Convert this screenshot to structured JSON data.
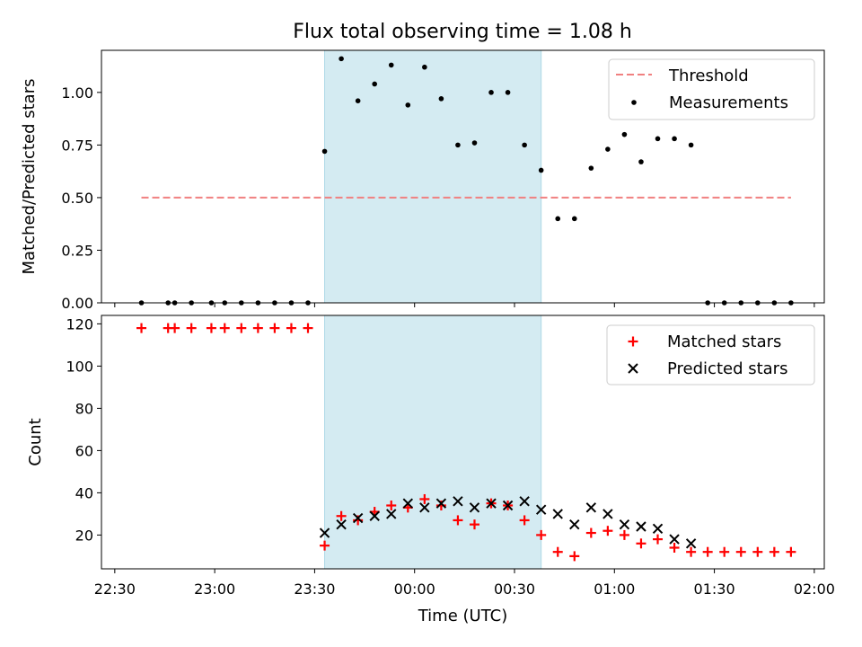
{
  "title": "Flux total observing time = 1.08 h",
  "x_axis": {
    "label": "Time (UTC)",
    "min_minutes_since_2230": -4,
    "max_minutes_since_2230": 213,
    "ticks": [
      "22:30",
      "23:00",
      "23:30",
      "00:00",
      "00:30",
      "01:00",
      "01:30",
      "02:00"
    ]
  },
  "highlight_band": {
    "start": "23:33",
    "end": "00:38",
    "color": "#add8e6"
  },
  "chart_data": [
    {
      "type": "scatter",
      "ylabel": "Matched/Predicted stars",
      "ylim": [
        0,
        1.2
      ],
      "yticks": [
        "0.00",
        "0.25",
        "0.50",
        "0.75",
        "1.00"
      ],
      "legend": {
        "placement": "top-right",
        "entries": [
          "Threshold",
          "Measurements"
        ]
      },
      "threshold": {
        "name": "Threshold",
        "value": 0.5,
        "x_start": "22:38",
        "x_end": "01:53",
        "color": "#f08080"
      },
      "series": [
        {
          "name": "Measurements",
          "color": "#000000",
          "marker": "dot",
          "x": [
            "22:38",
            "22:46",
            "22:48",
            "22:53",
            "22:59",
            "23:03",
            "23:08",
            "23:13",
            "23:18",
            "23:23",
            "23:28",
            "23:33",
            "23:38",
            "23:43",
            "23:48",
            "23:53",
            "23:58",
            "00:03",
            "00:08",
            "00:13",
            "00:18",
            "00:23",
            "00:28",
            "00:33",
            "00:38",
            "00:43",
            "00:48",
            "00:53",
            "00:58",
            "01:03",
            "01:08",
            "01:13",
            "01:18",
            "01:23",
            "01:28",
            "01:33",
            "01:38",
            "01:43",
            "01:48",
            "01:53"
          ],
          "y": [
            0,
            0,
            0,
            0,
            0,
            0,
            0,
            0,
            0,
            0,
            0,
            0.72,
            1.16,
            0.96,
            1.04,
            1.13,
            0.94,
            1.12,
            0.97,
            0.75,
            0.76,
            1.0,
            1.0,
            0.75,
            0.63,
            0.4,
            0.4,
            0.64,
            0.73,
            0.8,
            0.67,
            0.78,
            0.78,
            0.75,
            0,
            0,
            0,
            0,
            0,
            0
          ]
        }
      ]
    },
    {
      "type": "scatter",
      "ylabel": "Count",
      "ylim": [
        4,
        124
      ],
      "yticks": [
        "20",
        "40",
        "60",
        "80",
        "100",
        "120"
      ],
      "xlabel": "Time (UTC)",
      "legend": {
        "placement": "top-right",
        "entries": [
          "Matched stars",
          "Predicted stars"
        ]
      },
      "series": [
        {
          "name": "Matched stars",
          "color": "#ff0000",
          "marker": "plus",
          "x": [
            "22:38",
            "22:46",
            "22:48",
            "22:53",
            "22:59",
            "23:03",
            "23:08",
            "23:13",
            "23:18",
            "23:23",
            "23:28",
            "23:33",
            "23:38",
            "23:43",
            "23:48",
            "23:53",
            "23:58",
            "00:03",
            "00:08",
            "00:13",
            "00:18",
            "00:23",
            "00:28",
            "00:33",
            "00:38",
            "00:43",
            "00:48",
            "00:53",
            "00:58",
            "01:03",
            "01:08",
            "01:13",
            "01:18",
            "01:23",
            "01:28",
            "01:33",
            "01:38",
            "01:43",
            "01:48",
            "01:53"
          ],
          "y": [
            118,
            118,
            118,
            118,
            118,
            118,
            118,
            118,
            118,
            118,
            118,
            15,
            29,
            27,
            31,
            34,
            33,
            37,
            34,
            27,
            25,
            35,
            34,
            27,
            20,
            12,
            10,
            21,
            22,
            20,
            16,
            18,
            14,
            12,
            12,
            12,
            12,
            12,
            12,
            12
          ]
        },
        {
          "name": "Predicted stars",
          "color": "#000000",
          "marker": "x",
          "x": [
            "23:33",
            "23:38",
            "23:43",
            "23:48",
            "23:53",
            "23:58",
            "00:03",
            "00:08",
            "00:13",
            "00:18",
            "00:23",
            "00:28",
            "00:33",
            "00:38",
            "00:43",
            "00:48",
            "00:53",
            "00:58",
            "01:03",
            "01:08",
            "01:13",
            "01:18",
            "01:23"
          ],
          "y": [
            21,
            25,
            28,
            29,
            30,
            35,
            33,
            35,
            36,
            33,
            35,
            34,
            36,
            32,
            30,
            25,
            33,
            30,
            25,
            24,
            23,
            18,
            16
          ]
        }
      ]
    }
  ]
}
